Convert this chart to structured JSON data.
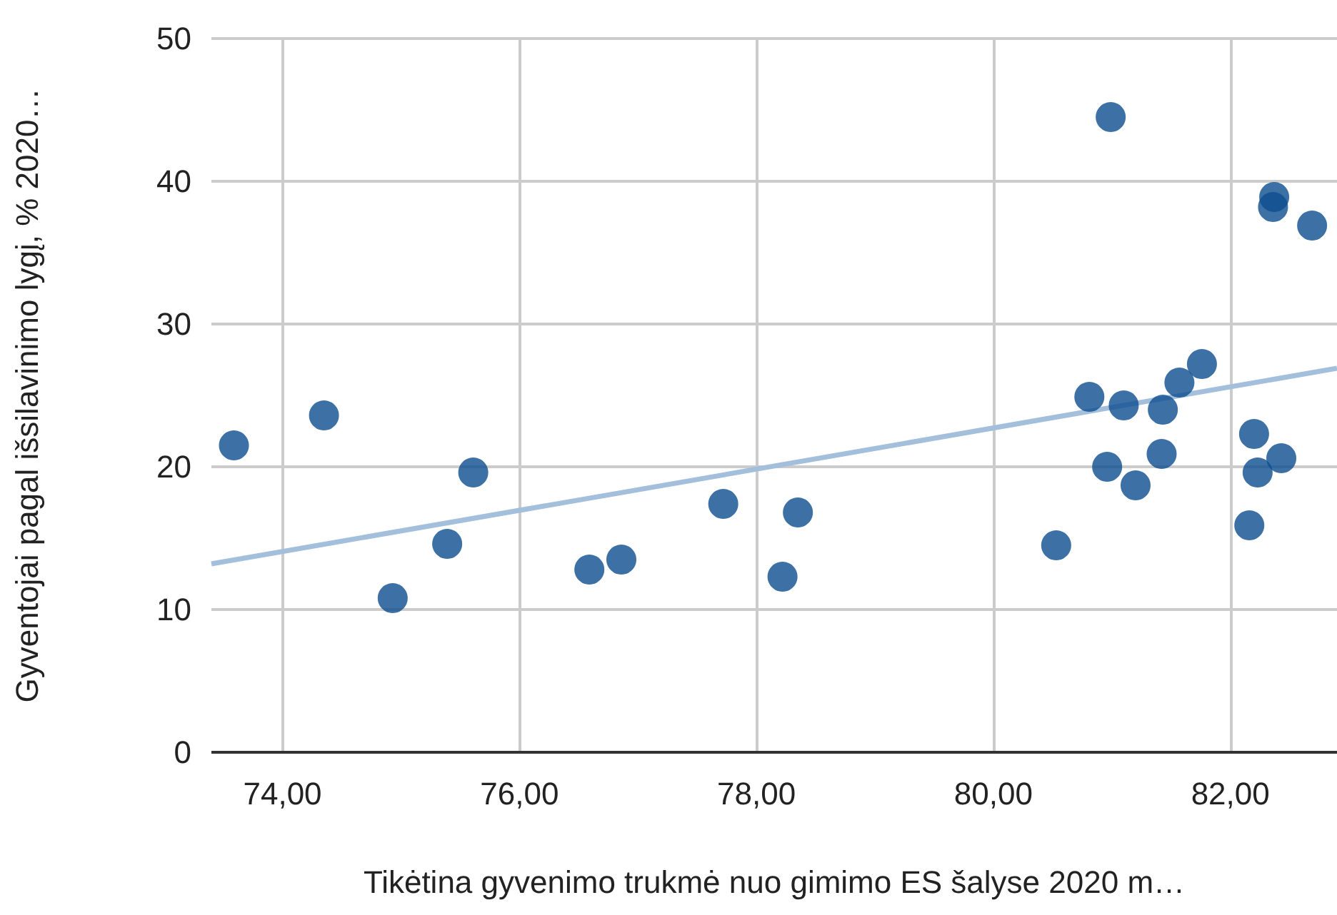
{
  "chart_data": {
    "type": "scatter",
    "xlabel": "Tikėtina gyvenimo trukmė nuo gimimo ES šalyse 2020 m…",
    "ylabel": "Gyventojai pagal išsilavinimo lygį, % 2020…",
    "xlim": [
      73.4,
      82.9
    ],
    "ylim": [
      0,
      50
    ],
    "xticks": [
      {
        "value": 74,
        "label": "74,00"
      },
      {
        "value": 76,
        "label": "76,00"
      },
      {
        "value": 78,
        "label": "78,00"
      },
      {
        "value": 80,
        "label": "80,00"
      },
      {
        "value": 82,
        "label": "82,00"
      }
    ],
    "yticks": [
      0,
      10,
      20,
      30,
      40,
      50
    ],
    "grid": true,
    "marker": "circle",
    "series": [
      {
        "color": "#0d4e8f",
        "x": [
          73.59,
          74.35,
          74.93,
          75.39,
          75.61,
          76.59,
          76.86,
          77.72,
          78.22,
          78.35,
          80.53,
          80.81,
          80.96,
          80.99,
          81.1,
          81.2,
          81.42,
          81.43,
          81.57,
          81.76,
          82.16,
          82.2,
          82.23,
          82.36,
          82.37,
          82.43,
          82.69
        ],
        "values": [
          21.5,
          23.6,
          10.8,
          14.6,
          19.6,
          12.8,
          13.5,
          17.4,
          12.3,
          16.8,
          14.5,
          24.9,
          20.0,
          44.5,
          24.3,
          18.7,
          20.9,
          24.0,
          25.9,
          27.2,
          15.9,
          22.3,
          19.6,
          38.2,
          38.9,
          20.6,
          36.9
        ]
      },
      {
        "type": "line",
        "marker": "none",
        "color": "#a3bfdc",
        "x": [
          73.4,
          82.9
        ],
        "values": [
          13.2,
          26.9
        ]
      }
    ]
  }
}
